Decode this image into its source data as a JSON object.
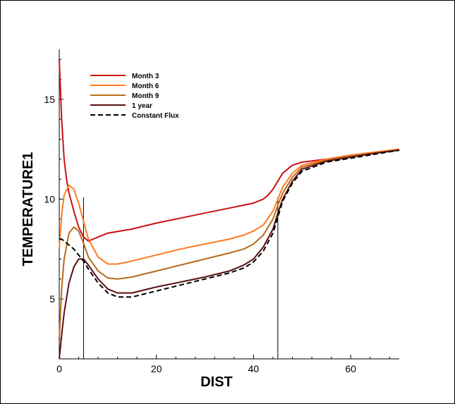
{
  "chart_data": {
    "type": "line",
    "title": "",
    "xlabel": "DIST",
    "ylabel": "TEMPERATURE1",
    "xlim": [
      0,
      70
    ],
    "ylim": [
      2,
      17.5
    ],
    "xticks": [
      0,
      20,
      40,
      60
    ],
    "yticks": [
      5,
      10,
      15
    ],
    "vertical_lines": [
      5,
      45
    ],
    "grid": false,
    "legend_position": "top-left",
    "series": [
      {
        "name": "Month 3",
        "color": "#cc1111",
        "dash": "solid",
        "x": [
          0,
          0.5,
          1,
          1.5,
          2,
          3,
          4,
          5,
          6,
          8,
          10,
          15,
          20,
          25,
          30,
          35,
          38,
          40,
          42,
          43,
          44,
          45,
          46,
          48,
          50,
          55,
          60,
          65,
          70
        ],
        "y": [
          17,
          14,
          12,
          11,
          10.3,
          9.4,
          8.6,
          8.1,
          7.9,
          8.1,
          8.3,
          8.5,
          8.8,
          9.05,
          9.3,
          9.55,
          9.7,
          9.8,
          10.0,
          10.2,
          10.5,
          10.9,
          11.3,
          11.7,
          11.85,
          12.0,
          12.2,
          12.35,
          12.5
        ]
      },
      {
        "name": "Month 6",
        "color": "#ff7a22",
        "dash": "solid",
        "x": [
          0,
          0.5,
          1,
          2,
          3,
          4,
          5,
          6,
          8,
          10,
          12,
          15,
          20,
          25,
          30,
          35,
          38,
          40,
          42,
          44,
          45,
          46,
          48,
          50,
          55,
          60,
          65,
          70
        ],
        "y": [
          7.5,
          9.2,
          10.2,
          10.7,
          10.5,
          9.8,
          8.9,
          8.0,
          7.1,
          6.75,
          6.75,
          6.9,
          7.2,
          7.5,
          7.75,
          8.0,
          8.2,
          8.4,
          8.7,
          9.4,
          10.0,
          10.6,
          11.3,
          11.7,
          12.0,
          12.2,
          12.35,
          12.5
        ]
      },
      {
        "name": "Month 9",
        "color": "#b86a1a",
        "dash": "solid",
        "x": [
          0,
          0.5,
          1,
          2,
          3,
          4,
          5,
          6,
          8,
          10,
          12,
          15,
          20,
          25,
          30,
          35,
          38,
          40,
          42,
          44,
          45,
          46,
          48,
          50,
          55,
          60,
          65,
          70
        ],
        "y": [
          3.0,
          5.5,
          7.0,
          8.3,
          8.6,
          8.4,
          7.8,
          7.1,
          6.4,
          6.05,
          6.0,
          6.1,
          6.4,
          6.7,
          7.0,
          7.3,
          7.5,
          7.75,
          8.2,
          9.0,
          9.7,
          10.3,
          11.1,
          11.6,
          11.95,
          12.15,
          12.3,
          12.45
        ]
      },
      {
        "name": "1 year",
        "color": "#5a0f10",
        "dash": "solid",
        "x": [
          0,
          0.5,
          1,
          2,
          3,
          4,
          5,
          6,
          8,
          10,
          12,
          15,
          20,
          25,
          30,
          35,
          38,
          40,
          42,
          44,
          45,
          46,
          48,
          50,
          55,
          60,
          65,
          70
        ],
        "y": [
          2.0,
          3.2,
          4.3,
          5.8,
          6.6,
          7.0,
          7.0,
          6.7,
          6.0,
          5.5,
          5.3,
          5.3,
          5.6,
          5.85,
          6.1,
          6.4,
          6.7,
          7.0,
          7.6,
          8.5,
          9.3,
          10.0,
          10.9,
          11.5,
          11.9,
          12.1,
          12.3,
          12.45
        ]
      },
      {
        "name": "Constant Flux",
        "color": "#000000",
        "dash": "dashed",
        "x": [
          0,
          0.5,
          1,
          2,
          3,
          4,
          5,
          6,
          8,
          10,
          12,
          15,
          20,
          25,
          30,
          35,
          38,
          40,
          42,
          44,
          45,
          46,
          48,
          50,
          55,
          60,
          65,
          70
        ],
        "y": [
          8.0,
          8.0,
          7.9,
          7.7,
          7.5,
          7.2,
          6.9,
          6.5,
          5.8,
          5.3,
          5.1,
          5.1,
          5.4,
          5.7,
          6.0,
          6.3,
          6.55,
          6.85,
          7.4,
          8.3,
          9.1,
          9.9,
          10.8,
          11.4,
          11.85,
          12.05,
          12.25,
          12.45
        ]
      }
    ]
  }
}
